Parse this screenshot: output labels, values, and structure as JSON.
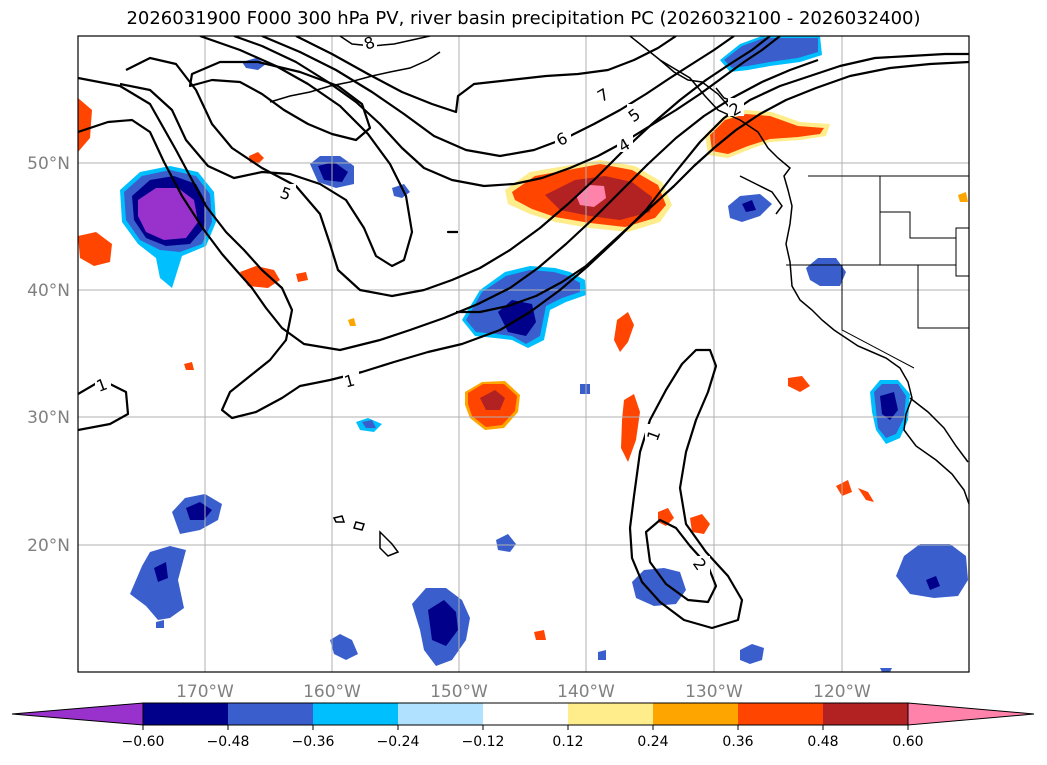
{
  "title": "2026031900 F000 300 hPa PV, river basin precipitation PC (2026032100 - 2026032400)",
  "lon_ticks": [
    "170°W",
    "160°W",
    "150°W",
    "140°W",
    "130°W",
    "120°W"
  ],
  "lat_ticks": [
    "50°N",
    "40°N",
    "30°N",
    "20°N"
  ],
  "contour_labels": [
    "1",
    "1",
    "1",
    "2",
    "2",
    "4",
    "5",
    "5",
    "6",
    "7",
    "8"
  ],
  "colorbar": {
    "colors": [
      "#9932cc",
      "#00008b",
      "#3a5fcd",
      "#00bfff",
      "#b0e2ff",
      "#ffffff",
      "#ffec8b",
      "#ffa500",
      "#ff4500",
      "#b22222",
      "#ff82ab"
    ],
    "tick_labels": [
      "−0.60",
      "−0.48",
      "−0.36",
      "−0.24",
      "−0.12",
      "0.12",
      "0.24",
      "0.36",
      "0.48",
      "0.60"
    ]
  }
}
